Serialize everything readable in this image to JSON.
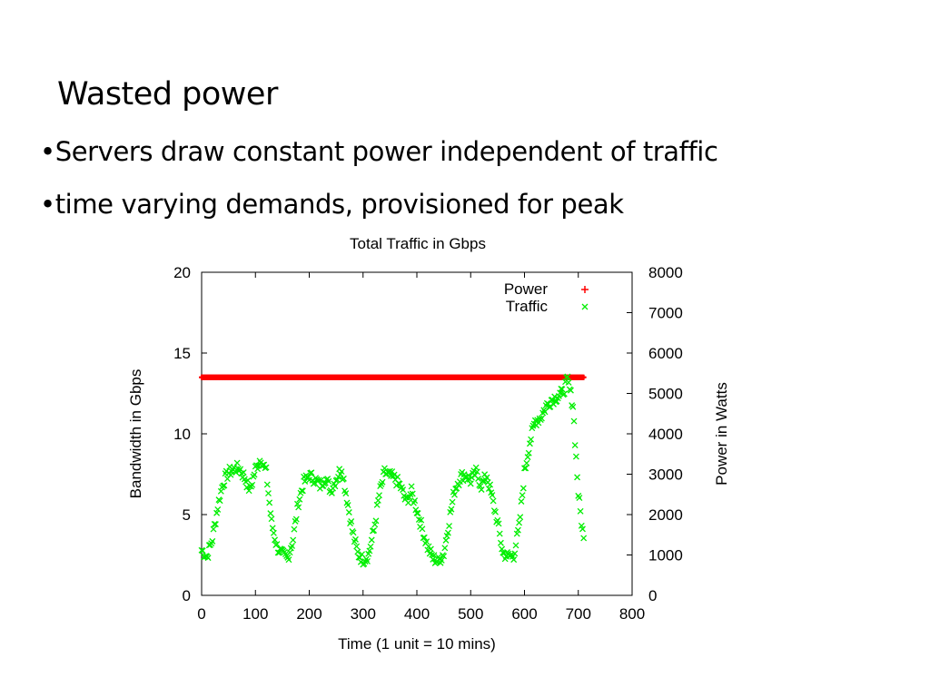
{
  "slide": {
    "title": "Wasted power",
    "bullets": [
      "•Servers draw constant power independent of traffic",
      "•time varying demands, provisioned for peak"
    ]
  },
  "chart_data": {
    "type": "scatter",
    "title": "Total Traffic in Gbps",
    "xlabel": "Time (1 unit = 10 mins)",
    "ylabel": "Bandwidth in Gbps",
    "y2label": "Power in Watts",
    "xlim": [
      0,
      800
    ],
    "ylim": [
      0,
      20
    ],
    "y2lim": [
      0,
      8000
    ],
    "xticks": [
      "0",
      "100",
      "200",
      "300",
      "400",
      "500",
      "600",
      "700",
      "800"
    ],
    "yticks": [
      "0",
      "5",
      "10",
      "15",
      "20"
    ],
    "y2ticks": [
      "0",
      "1000",
      "2000",
      "3000",
      "4000",
      "5000",
      "6000",
      "7000",
      "8000"
    ],
    "grid": false,
    "legend_position": "top-right",
    "series": [
      {
        "name": "Power",
        "axis": "right",
        "marker": "+",
        "color": "#ff0000",
        "x_range": [
          0,
          710
        ],
        "constant_value": 5400
      },
      {
        "name": "Traffic",
        "axis": "left",
        "marker": "x",
        "color": "#00ee00",
        "x": [
          0,
          10,
          20,
          30,
          40,
          50,
          60,
          70,
          80,
          90,
          100,
          110,
          120,
          130,
          140,
          150,
          160,
          170,
          180,
          190,
          200,
          210,
          220,
          230,
          240,
          250,
          260,
          270,
          280,
          290,
          300,
          310,
          320,
          330,
          340,
          350,
          360,
          370,
          380,
          390,
          400,
          410,
          420,
          430,
          440,
          450,
          460,
          470,
          480,
          490,
          500,
          510,
          520,
          530,
          540,
          550,
          560,
          570,
          580,
          590,
          600,
          610,
          620,
          630,
          640,
          650,
          660,
          670,
          680,
          690,
          700,
          710
        ],
        "y": [
          2.8,
          2.4,
          3.5,
          5.5,
          7.0,
          7.6,
          7.8,
          7.9,
          7.3,
          6.5,
          7.8,
          8.5,
          7.6,
          4.5,
          3.0,
          2.5,
          2.3,
          3.5,
          5.8,
          7.0,
          7.4,
          7.2,
          6.8,
          7.3,
          6.5,
          7.2,
          7.9,
          6.0,
          4.0,
          2.6,
          2.2,
          2.5,
          4.0,
          6.2,
          7.6,
          7.4,
          7.2,
          6.7,
          5.8,
          6.4,
          5.3,
          4.1,
          3.0,
          2.3,
          2.1,
          2.6,
          4.6,
          6.5,
          7.3,
          7.5,
          7.1,
          7.6,
          6.8,
          7.4,
          6.0,
          4.5,
          2.6,
          2.4,
          2.5,
          4.2,
          7.6,
          9.5,
          10.8,
          11.0,
          11.7,
          12.1,
          12.3,
          12.5,
          13.3,
          11.8,
          6.3,
          3.4
        ]
      }
    ]
  }
}
